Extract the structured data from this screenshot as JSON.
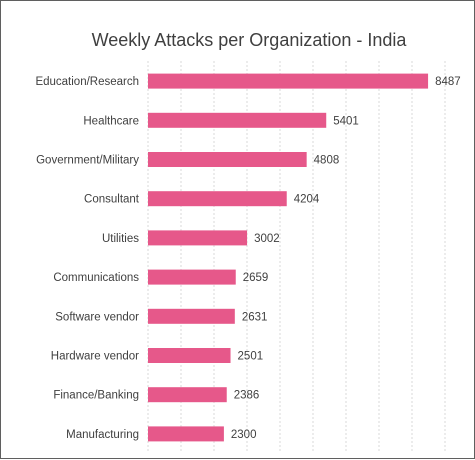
{
  "chart_data": {
    "type": "bar",
    "orientation": "horizontal",
    "title": "Weekly Attacks per Organization - India",
    "categories": [
      "Education/Research",
      "Healthcare",
      "Government/Military",
      "Consultant",
      "Utilities",
      "Communications",
      "Software vendor",
      "Hardware vendor",
      "Finance/Banking",
      "Manufacturing"
    ],
    "values": [
      8487,
      5401,
      4808,
      4204,
      3002,
      2659,
      2631,
      2501,
      2386,
      2300
    ],
    "xlim": [
      0,
      9000
    ],
    "data_labels": true,
    "grid": true,
    "legend": "none",
    "bar_color": "#e6588a"
  }
}
